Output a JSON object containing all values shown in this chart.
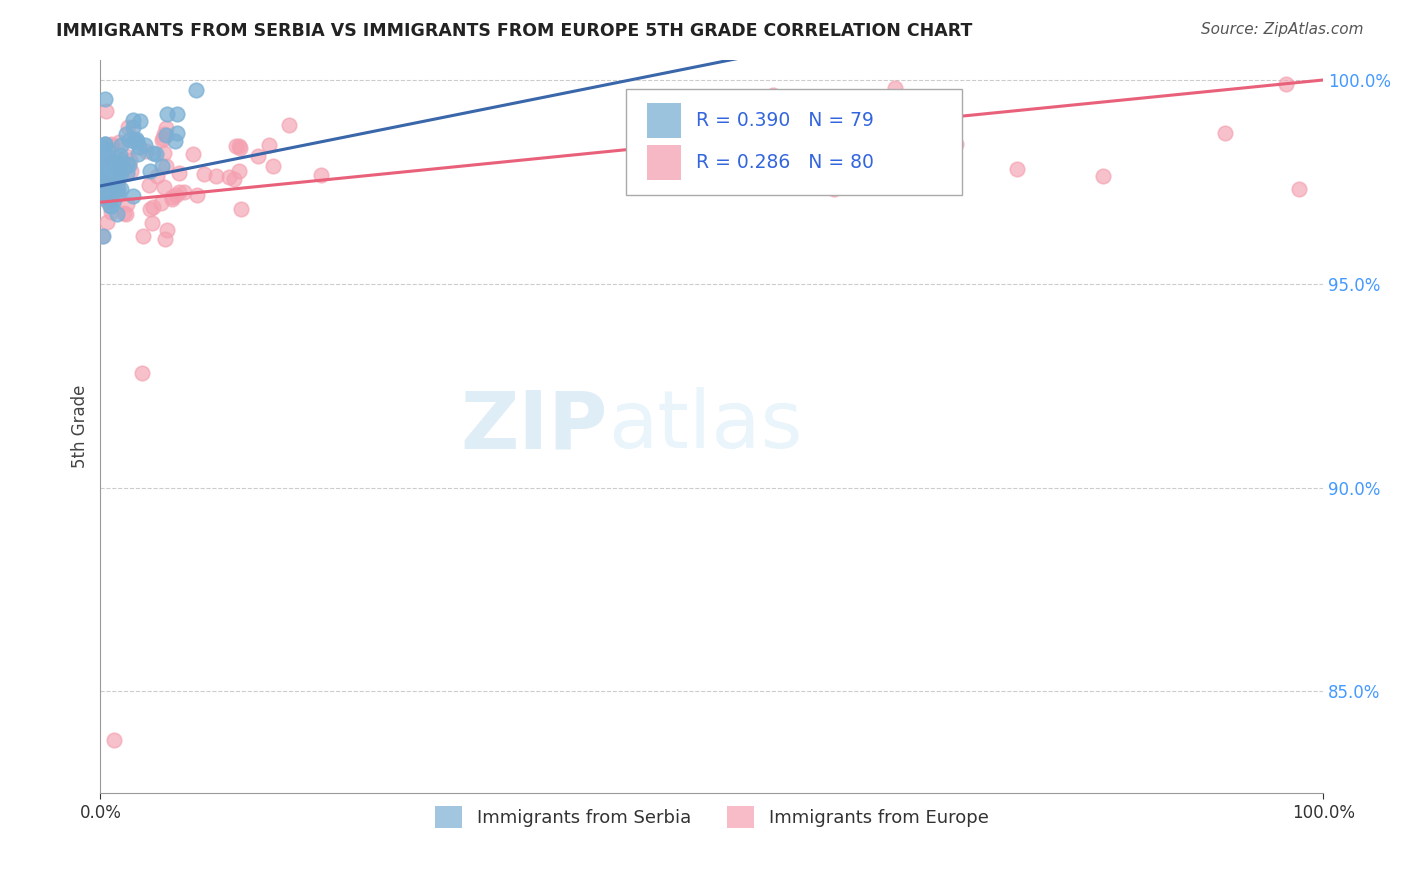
{
  "title": "IMMIGRANTS FROM SERBIA VS IMMIGRANTS FROM EUROPE 5TH GRADE CORRELATION CHART",
  "source": "Source: ZipAtlas.com",
  "ylabel": "5th Grade",
  "xlim": [
    0,
    1.0
  ],
  "ylim": [
    0.825,
    1.005
  ],
  "yticks": [
    0.85,
    0.9,
    0.95,
    1.0
  ],
  "ytick_labels": [
    "85.0%",
    "90.0%",
    "95.0%",
    "100.0%"
  ],
  "serbia_color": "#7bafd4",
  "europe_color": "#f4a0b0",
  "serbia_R": 0.39,
  "serbia_N": 79,
  "europe_R": 0.286,
  "europe_N": 80,
  "serbia_line_color": "#3a66aa",
  "europe_line_color": "#e8607a",
  "watermark_zip_color": "#c5dff0",
  "watermark_atlas_color": "#d0e8f8",
  "legend_serbia_label": "Immigrants from Serbia",
  "legend_europe_label": "Immigrants from Europe",
  "background_color": "#ffffff",
  "grid_color": "#cccccc",
  "ytick_color": "#4499ff",
  "title_color": "#222222",
  "source_color": "#555555"
}
